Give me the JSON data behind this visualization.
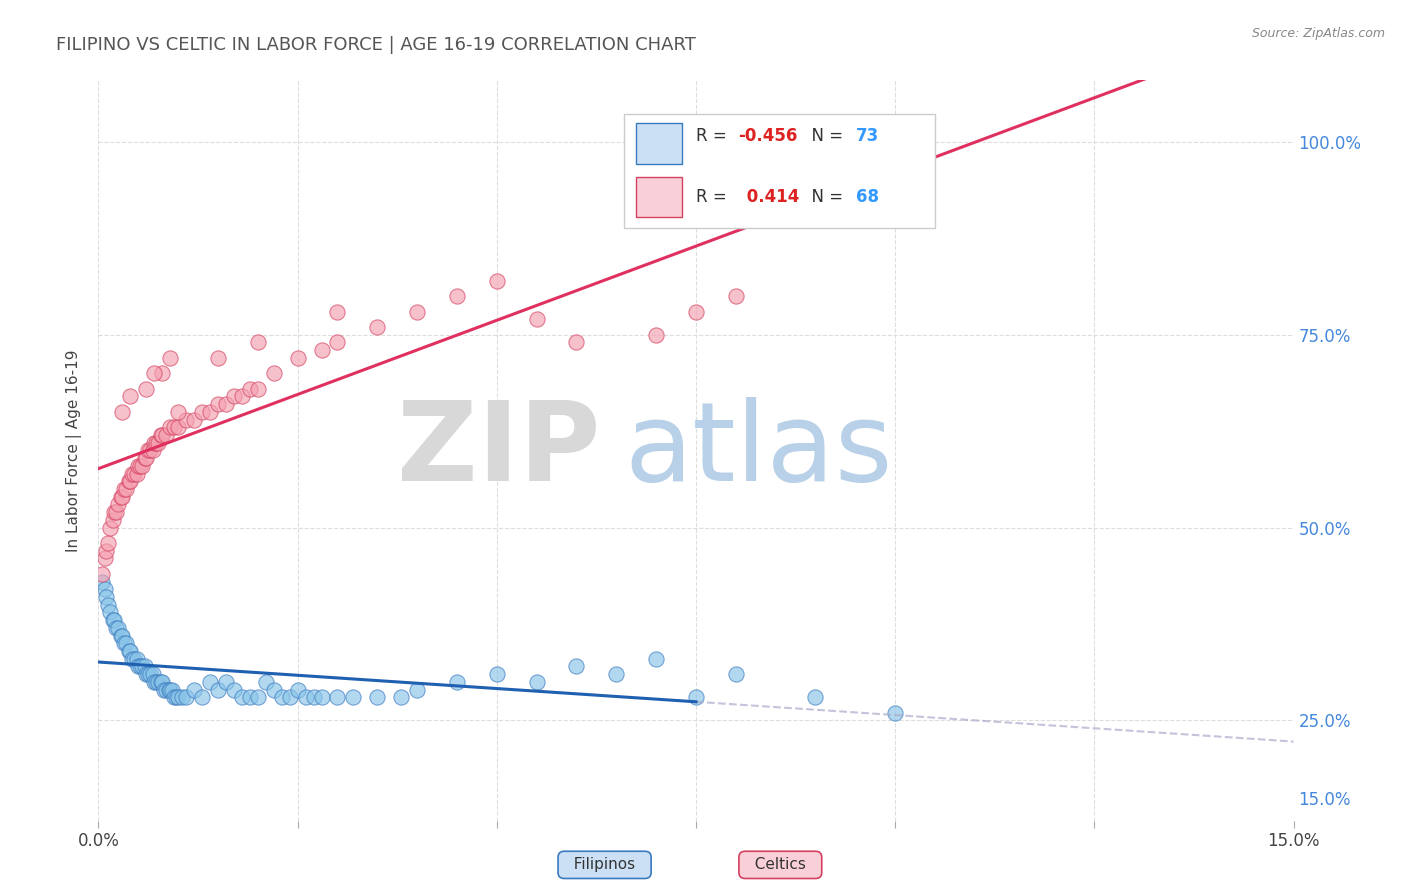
{
  "title": "FILIPINO VS CELTIC IN LABOR FORCE | AGE 16-19 CORRELATION CHART",
  "source": "Source: ZipAtlas.com",
  "ylabel": "In Labor Force | Age 16-19",
  "xlim": [
    0.0,
    15.0
  ],
  "ylim": [
    12.0,
    108.0
  ],
  "filipino_color": "#89c4e8",
  "celtic_color": "#f4a0b0",
  "filipino_edge": "#3a7abf",
  "celtic_edge": "#d44060",
  "trend_filipino_color": "#2060b0",
  "trend_celtic_color": "#e03060",
  "legend_box_color": "#cce0f5",
  "legend_box_color2": "#fad0d8",
  "R_filipino": -0.456,
  "N_filipino": 73,
  "R_celtic": 0.414,
  "N_celtic": 68,
  "filipino_x": [
    0.05,
    0.08,
    0.1,
    0.12,
    0.15,
    0.18,
    0.2,
    0.22,
    0.25,
    0.28,
    0.3,
    0.32,
    0.35,
    0.38,
    0.4,
    0.42,
    0.45,
    0.48,
    0.5,
    0.52,
    0.55,
    0.58,
    0.6,
    0.62,
    0.65,
    0.68,
    0.7,
    0.72,
    0.75,
    0.78,
    0.8,
    0.82,
    0.85,
    0.88,
    0.9,
    0.92,
    0.95,
    0.98,
    1.0,
    1.05,
    1.1,
    1.2,
    1.3,
    1.4,
    1.5,
    1.6,
    1.7,
    1.8,
    1.9,
    2.0,
    2.1,
    2.2,
    2.3,
    2.4,
    2.5,
    2.6,
    2.7,
    2.8,
    3.0,
    3.2,
    3.5,
    3.8,
    4.0,
    4.5,
    5.0,
    5.5,
    6.0,
    6.5,
    7.0,
    7.5,
    8.0,
    9.0,
    10.0
  ],
  "filipino_y": [
    43,
    42,
    41,
    40,
    39,
    38,
    38,
    37,
    37,
    36,
    36,
    35,
    35,
    34,
    34,
    33,
    33,
    33,
    32,
    32,
    32,
    32,
    31,
    31,
    31,
    31,
    30,
    30,
    30,
    30,
    30,
    29,
    29,
    29,
    29,
    29,
    28,
    28,
    28,
    28,
    28,
    29,
    28,
    30,
    29,
    30,
    29,
    28,
    28,
    28,
    30,
    29,
    28,
    28,
    29,
    28,
    28,
    28,
    28,
    28,
    28,
    28,
    29,
    30,
    31,
    30,
    32,
    31,
    33,
    28,
    31,
    28,
    26
  ],
  "celtic_x": [
    0.05,
    0.08,
    0.1,
    0.12,
    0.15,
    0.18,
    0.2,
    0.22,
    0.25,
    0.28,
    0.3,
    0.32,
    0.35,
    0.38,
    0.4,
    0.42,
    0.45,
    0.48,
    0.5,
    0.52,
    0.55,
    0.58,
    0.6,
    0.62,
    0.65,
    0.68,
    0.7,
    0.72,
    0.75,
    0.78,
    0.8,
    0.85,
    0.9,
    0.95,
    1.0,
    1.1,
    1.2,
    1.3,
    1.4,
    1.5,
    1.6,
    1.7,
    1.8,
    1.9,
    2.0,
    2.2,
    2.5,
    2.8,
    3.0,
    3.5,
    4.0,
    4.5,
    5.0,
    5.5,
    6.0,
    7.0,
    7.5,
    8.0,
    0.3,
    0.6,
    0.8,
    1.0,
    1.5,
    2.0,
    3.0,
    0.4,
    0.7,
    0.9
  ],
  "celtic_y": [
    44,
    46,
    47,
    48,
    50,
    51,
    52,
    52,
    53,
    54,
    54,
    55,
    55,
    56,
    56,
    57,
    57,
    57,
    58,
    58,
    58,
    59,
    59,
    60,
    60,
    60,
    61,
    61,
    61,
    62,
    62,
    62,
    63,
    63,
    63,
    64,
    64,
    65,
    65,
    66,
    66,
    67,
    67,
    68,
    68,
    70,
    72,
    73,
    74,
    76,
    78,
    80,
    82,
    77,
    74,
    75,
    78,
    80,
    65,
    68,
    70,
    65,
    72,
    74,
    78,
    67,
    70,
    72
  ]
}
